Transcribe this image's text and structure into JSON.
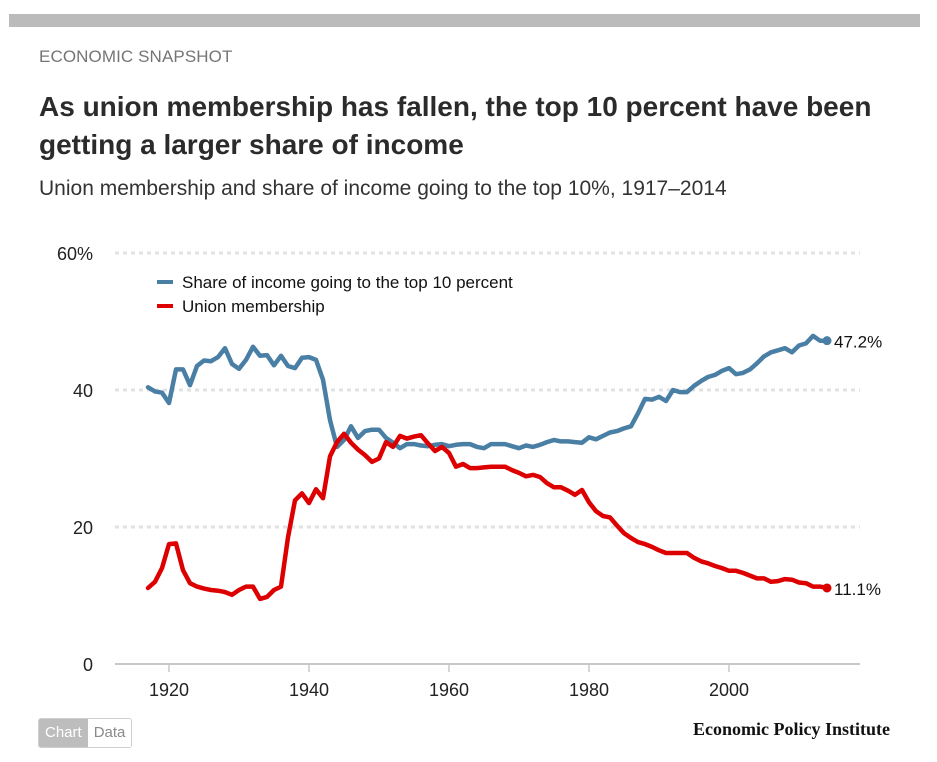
{
  "header": {
    "kicker": "ECONOMIC SNAPSHOT",
    "title": "As union membership has fallen, the top 10 percent have been getting a larger share of income",
    "subtitle": "Union membership and share of income going to the top 10%, 1917–2014"
  },
  "toggle": {
    "chart_label": "Chart",
    "data_label": "Data",
    "active": "chart"
  },
  "footer": {
    "brand": "Economic Policy Institute"
  },
  "chart_data": {
    "type": "line",
    "title": "Union membership and share of income going to the top 10%, 1917–2014",
    "xlabel": "",
    "ylabel": "",
    "xlim": [
      1912,
      2019
    ],
    "ylim": [
      0,
      60
    ],
    "x_ticks": [
      1920,
      1940,
      1960,
      1980,
      2000
    ],
    "y_ticks": [
      0,
      20,
      40,
      60
    ],
    "y_tick_labels": [
      "0",
      "20",
      "40",
      "60%"
    ],
    "grid": "horizontal-dotted",
    "legend_position": "top-left",
    "x": [
      1917,
      1918,
      1919,
      1920,
      1921,
      1922,
      1923,
      1924,
      1925,
      1926,
      1927,
      1928,
      1929,
      1930,
      1931,
      1932,
      1933,
      1934,
      1935,
      1936,
      1937,
      1938,
      1939,
      1940,
      1941,
      1942,
      1943,
      1944,
      1945,
      1946,
      1947,
      1948,
      1949,
      1950,
      1951,
      1952,
      1953,
      1954,
      1955,
      1956,
      1957,
      1958,
      1959,
      1960,
      1961,
      1962,
      1963,
      1964,
      1965,
      1966,
      1967,
      1968,
      1969,
      1970,
      1971,
      1972,
      1973,
      1974,
      1975,
      1976,
      1977,
      1978,
      1979,
      1980,
      1981,
      1982,
      1983,
      1984,
      1985,
      1986,
      1987,
      1988,
      1989,
      1990,
      1991,
      1992,
      1993,
      1994,
      1995,
      1996,
      1997,
      1998,
      1999,
      2000,
      2001,
      2002,
      2003,
      2004,
      2005,
      2006,
      2007,
      2008,
      2009,
      2010,
      2011,
      2012,
      2013,
      2014
    ],
    "series": [
      {
        "name": "Share of income going to the top 10 percent",
        "color": "#4a7fa5",
        "end_label": "47.2%",
        "values": [
          40.4,
          39.8,
          39.6,
          38.1,
          43.0,
          43.0,
          40.7,
          43.5,
          44.3,
          44.2,
          44.8,
          46.1,
          43.8,
          43.1,
          44.4,
          46.3,
          45.0,
          45.1,
          43.6,
          45.0,
          43.5,
          43.2,
          44.7,
          44.8,
          44.4,
          41.5,
          35.6,
          31.7,
          32.7,
          34.7,
          33.0,
          34.0,
          34.2,
          34.2,
          33.0,
          32.3,
          31.5,
          32.1,
          32.1,
          31.9,
          31.8,
          32.0,
          32.1,
          31.8,
          32.0,
          32.1,
          32.1,
          31.7,
          31.5,
          32.1,
          32.1,
          32.1,
          31.8,
          31.5,
          31.9,
          31.7,
          32.0,
          32.4,
          32.7,
          32.5,
          32.5,
          32.4,
          32.3,
          33.1,
          32.8,
          33.3,
          33.8,
          34.0,
          34.4,
          34.7,
          36.6,
          38.7,
          38.6,
          39.0,
          38.4,
          40.0,
          39.7,
          39.7,
          40.6,
          41.3,
          41.9,
          42.2,
          42.8,
          43.2,
          42.3,
          42.5,
          43.0,
          43.9,
          44.9,
          45.5,
          45.8,
          46.1,
          45.5,
          46.5,
          46.8,
          47.9,
          47.2,
          47.2
        ]
      },
      {
        "name": "Union membership",
        "color": "#dd0000",
        "end_label": "11.1%",
        "values": [
          11.1,
          12.0,
          14.0,
          17.5,
          17.6,
          13.7,
          11.8,
          11.3,
          11.0,
          10.8,
          10.7,
          10.5,
          10.1,
          10.8,
          11.3,
          11.3,
          9.5,
          9.8,
          10.8,
          11.3,
          18.5,
          23.9,
          24.9,
          23.5,
          25.5,
          24.2,
          30.3,
          32.4,
          33.6,
          32.3,
          31.3,
          30.5,
          29.5,
          30.0,
          32.4,
          31.7,
          33.3,
          32.9,
          33.2,
          33.4,
          32.2,
          31.1,
          31.7,
          30.8,
          28.8,
          29.2,
          28.6,
          28.6,
          28.7,
          28.8,
          28.8,
          28.8,
          28.3,
          27.9,
          27.4,
          27.6,
          27.3,
          26.4,
          25.8,
          25.8,
          25.3,
          24.7,
          25.4,
          23.6,
          22.3,
          21.6,
          21.4,
          20.2,
          19.1,
          18.4,
          17.8,
          17.5,
          17.1,
          16.6,
          16.2,
          16.2,
          16.2,
          16.2,
          15.5,
          15.0,
          14.7,
          14.3,
          14.0,
          13.6,
          13.6,
          13.3,
          12.9,
          12.5,
          12.5,
          12.0,
          12.1,
          12.4,
          12.3,
          11.9,
          11.8,
          11.3,
          11.3,
          11.1
        ]
      }
    ]
  }
}
